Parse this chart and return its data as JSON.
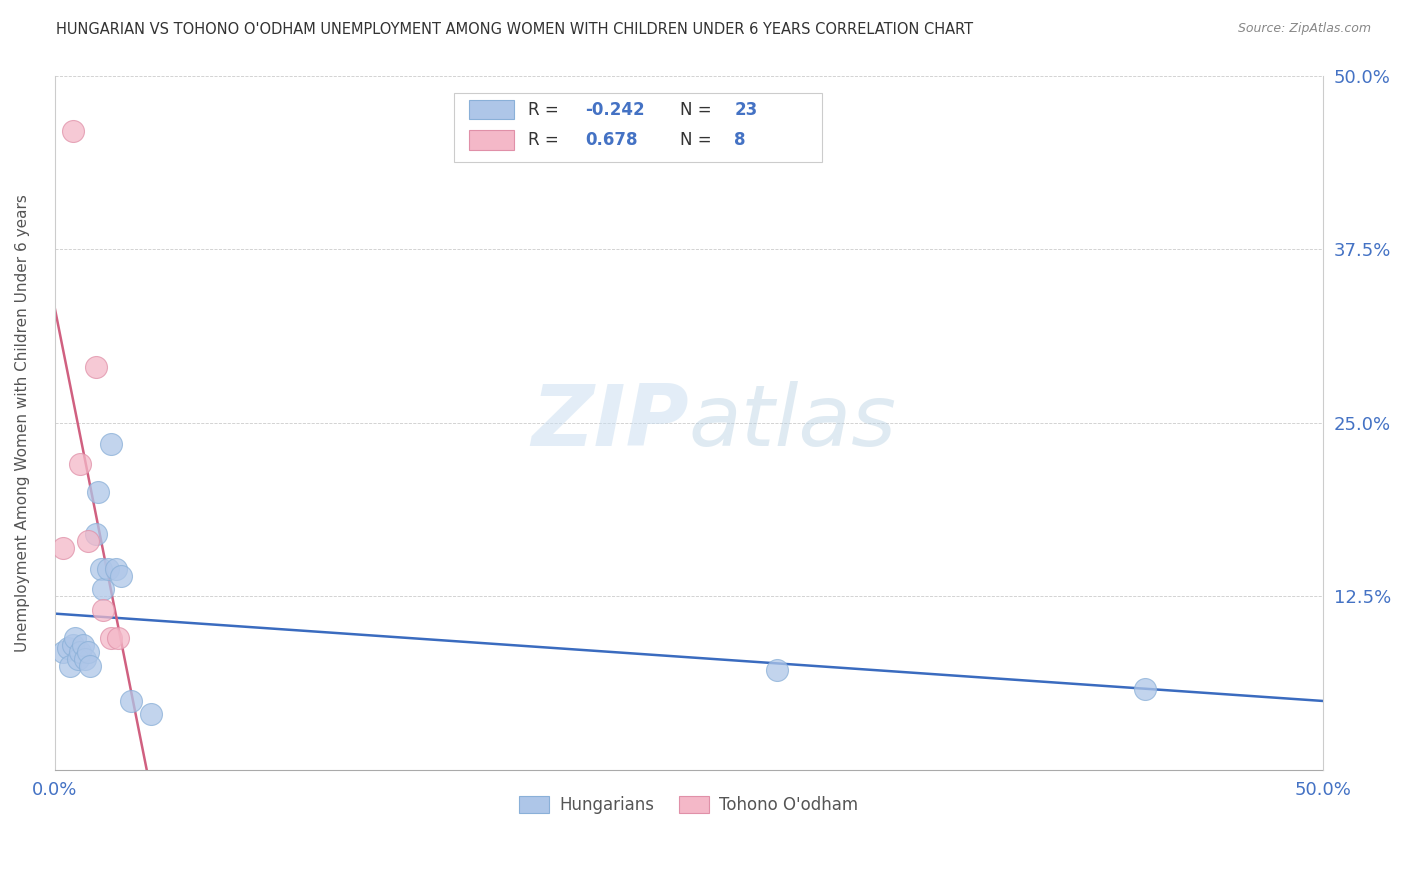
{
  "title": "HUNGARIAN VS TOHONO O'ODHAM UNEMPLOYMENT AMONG WOMEN WITH CHILDREN UNDER 6 YEARS CORRELATION CHART",
  "source": "Source: ZipAtlas.com",
  "ylabel": "Unemployment Among Women with Children Under 6 years",
  "xlim": [
    0,
    0.5
  ],
  "ylim": [
    0,
    0.5
  ],
  "xticks": [
    0.0,
    0.125,
    0.25,
    0.375,
    0.5
  ],
  "xtick_labels": [
    "0.0%",
    "",
    "",
    "",
    "50.0%"
  ],
  "yticks": [
    0.0,
    0.125,
    0.25,
    0.375,
    0.5
  ],
  "ytick_labels": [
    "",
    "12.5%",
    "25.0%",
    "37.5%",
    "50.0%"
  ],
  "hungarian_R": "-0.242",
  "hungarian_N": "23",
  "tohono_R": "0.678",
  "tohono_N": "8",
  "hungarian_color": "#aec6e8",
  "tohono_color": "#f4b8c8",
  "hungarian_line_color": "#3a6bbf",
  "tohono_line_color": "#d06080",
  "tohono_line_dash": "dashed_upper",
  "background_color": "#ffffff",
  "hungarian_x": [
    0.003,
    0.005,
    0.006,
    0.007,
    0.008,
    0.009,
    0.01,
    0.011,
    0.012,
    0.013,
    0.014,
    0.016,
    0.017,
    0.018,
    0.019,
    0.021,
    0.022,
    0.024,
    0.026,
    0.03,
    0.038,
    0.285,
    0.43
  ],
  "hungarian_y": [
    0.085,
    0.088,
    0.075,
    0.09,
    0.095,
    0.08,
    0.085,
    0.09,
    0.08,
    0.085,
    0.075,
    0.17,
    0.2,
    0.145,
    0.13,
    0.145,
    0.235,
    0.145,
    0.14,
    0.05,
    0.04,
    0.072,
    0.058
  ],
  "tohono_x": [
    0.003,
    0.007,
    0.01,
    0.013,
    0.016,
    0.019,
    0.022,
    0.025
  ],
  "tohono_y": [
    0.16,
    0.46,
    0.22,
    0.165,
    0.29,
    0.115,
    0.095,
    0.095
  ]
}
